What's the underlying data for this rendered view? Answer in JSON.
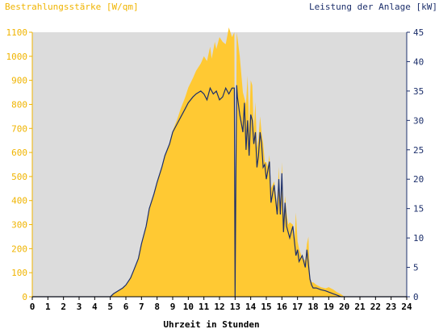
{
  "chart_data": {
    "type": "area",
    "ylabel_left": "Bestrahlungsstärke [W/qm]",
    "ylabel_right": "Leistung der Anlage [kW]",
    "xlabel": "Uhrzeit in Stunden",
    "xlim": [
      0,
      24
    ],
    "ylim_left": [
      0,
      1100
    ],
    "ylim_right": [
      0,
      45
    ],
    "x_ticks": [
      "0",
      "1",
      "2",
      "3",
      "4",
      "5",
      "6",
      "7",
      "8",
      "9",
      "10",
      "11",
      "12",
      "13",
      "14",
      "15",
      "16",
      "17",
      "18",
      "19",
      "20",
      "21",
      "22",
      "23",
      "24"
    ],
    "y_left_ticks": [
      "0",
      "100",
      "200",
      "300",
      "400",
      "500",
      "600",
      "700",
      "800",
      "900",
      "1000",
      "1100"
    ],
    "y_right_ticks": [
      "0",
      "5",
      "10",
      "15",
      "20",
      "25",
      "30",
      "35",
      "40",
      "45"
    ],
    "grid": false,
    "colors": {
      "irradiance_fill": "#ffc933",
      "power_line": "#1c2f6b",
      "plot_background": "#dcdcdc",
      "left_axis": "#f0b400",
      "right_axis": "#1c2f6b"
    },
    "series": [
      {
        "axis": "left",
        "style": "filled-area",
        "x": [
          0,
          5.0,
          5.2,
          5.5,
          5.8,
          6.0,
          6.3,
          6.5,
          6.8,
          7.0,
          7.3,
          7.5,
          7.8,
          8.0,
          8.3,
          8.5,
          8.8,
          9.0,
          9.3,
          9.5,
          9.8,
          10.0,
          10.3,
          10.5,
          10.8,
          11.0,
          11.2,
          11.4,
          11.5,
          11.7,
          11.8,
          12.0,
          12.2,
          12.4,
          12.6,
          12.8,
          12.95,
          13.0,
          13.05,
          13.1,
          13.15,
          13.3,
          13.5,
          13.7,
          13.8,
          13.9,
          14.0,
          14.1,
          14.2,
          14.3,
          14.4,
          14.5,
          14.6,
          14.7,
          14.8,
          14.9,
          15.0,
          15.1,
          15.2,
          15.3,
          15.5,
          15.7,
          15.8,
          15.9,
          16.0,
          16.1,
          16.2,
          16.3,
          16.4,
          16.5,
          16.7,
          16.8,
          16.9,
          17.0,
          17.1,
          17.3,
          17.5,
          17.6,
          17.7,
          17.8,
          17.9,
          18.0,
          18.2,
          18.5,
          18.8,
          19.0,
          19.3,
          19.5,
          19.8,
          20.0,
          24
        ],
        "values": [
          0,
          0,
          15,
          25,
          35,
          50,
          80,
          110,
          160,
          220,
          290,
          360,
          430,
          480,
          540,
          590,
          640,
          690,
          740,
          780,
          830,
          870,
          910,
          940,
          970,
          1000,
          980,
          1040,
          990,
          1060,
          1030,
          1080,
          1060,
          1050,
          1120,
          1080,
          1100,
          10,
          500,
          1100,
          1080,
          1000,
          850,
          800,
          920,
          700,
          900,
          880,
          700,
          810,
          620,
          660,
          750,
          680,
          640,
          560,
          560,
          540,
          590,
          450,
          480,
          380,
          540,
          360,
          560,
          320,
          420,
          350,
          300,
          310,
          300,
          220,
          350,
          230,
          200,
          160,
          150,
          220,
          250,
          80,
          60,
          60,
          50,
          40,
          35,
          40,
          30,
          20,
          10,
          0,
          0
        ]
      },
      {
        "axis": "right",
        "style": "line",
        "x": [
          0,
          5.0,
          5.2,
          5.5,
          5.8,
          6.0,
          6.3,
          6.5,
          6.8,
          7.0,
          7.3,
          7.5,
          7.8,
          8.0,
          8.3,
          8.5,
          8.8,
          9.0,
          9.3,
          9.5,
          9.8,
          10.0,
          10.3,
          10.5,
          10.8,
          11.0,
          11.2,
          11.4,
          11.6,
          11.8,
          12.0,
          12.2,
          12.4,
          12.6,
          12.8,
          12.95,
          13.0,
          13.05,
          13.1,
          13.15,
          13.3,
          13.5,
          13.6,
          13.7,
          13.8,
          13.9,
          14.0,
          14.1,
          14.2,
          14.3,
          14.4,
          14.5,
          14.6,
          14.7,
          14.8,
          14.9,
          15.0,
          15.2,
          15.3,
          15.5,
          15.7,
          15.8,
          15.9,
          16.0,
          16.1,
          16.2,
          16.3,
          16.5,
          16.7,
          16.9,
          17.0,
          17.1,
          17.3,
          17.5,
          17.6,
          17.8,
          17.9,
          18.0,
          18.2,
          18.5,
          18.8,
          19.0,
          19.3,
          19.5,
          19.8,
          20.0,
          24
        ],
        "values": [
          0,
          0,
          0.5,
          1,
          1.5,
          2,
          3.2,
          4.5,
          6.5,
          9,
          12,
          15,
          17.5,
          19.5,
          22,
          24,
          26,
          28,
          29.5,
          30.5,
          32,
          33,
          34,
          34.5,
          35,
          34.5,
          33.5,
          35.5,
          34.5,
          35,
          33.5,
          34,
          35.5,
          34.5,
          35.5,
          35.5,
          0,
          20,
          36,
          34,
          31,
          28,
          33,
          25,
          30,
          24,
          31,
          30,
          26,
          28,
          22,
          24,
          28,
          26,
          22,
          22.5,
          20,
          23,
          16,
          19,
          14,
          20,
          14,
          21,
          11,
          16,
          12,
          10,
          12,
          7,
          8,
          6,
          7,
          5,
          8,
          3,
          2,
          1.5,
          1.5,
          1.2,
          1,
          0.8,
          0.5,
          0.3,
          0,
          0,
          0
        ]
      }
    ]
  }
}
